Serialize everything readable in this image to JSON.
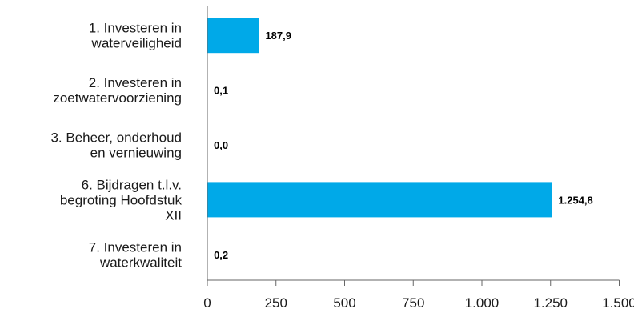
{
  "chart_data": {
    "type": "bar",
    "orientation": "horizontal",
    "categories": [
      [
        "1. Investeren in",
        "waterveiligheid"
      ],
      [
        "2. Investeren in",
        "zoetwatervoorziening"
      ],
      [
        "3. Beheer, onderhoud",
        "en vernieuwing"
      ],
      [
        "6. Bijdragen t.l.v.",
        "begroting Hoofdstuk",
        "XII"
      ],
      [
        "7. Investeren in",
        "waterkwaliteit"
      ]
    ],
    "values": [
      187.9,
      0.1,
      0.0,
      1254.8,
      0.2
    ],
    "value_labels": [
      "187,9",
      "0,1",
      "0,0",
      "1.254,8",
      "0,2"
    ],
    "xlim": [
      0,
      1500
    ],
    "xticks": [
      0,
      250,
      500,
      750,
      1000,
      1250,
      1500
    ],
    "xtick_labels": [
      "0",
      "250",
      "500",
      "750",
      "1.000",
      "1.250",
      "1.500"
    ],
    "grid": false,
    "bar_color": "#00a9e8"
  }
}
